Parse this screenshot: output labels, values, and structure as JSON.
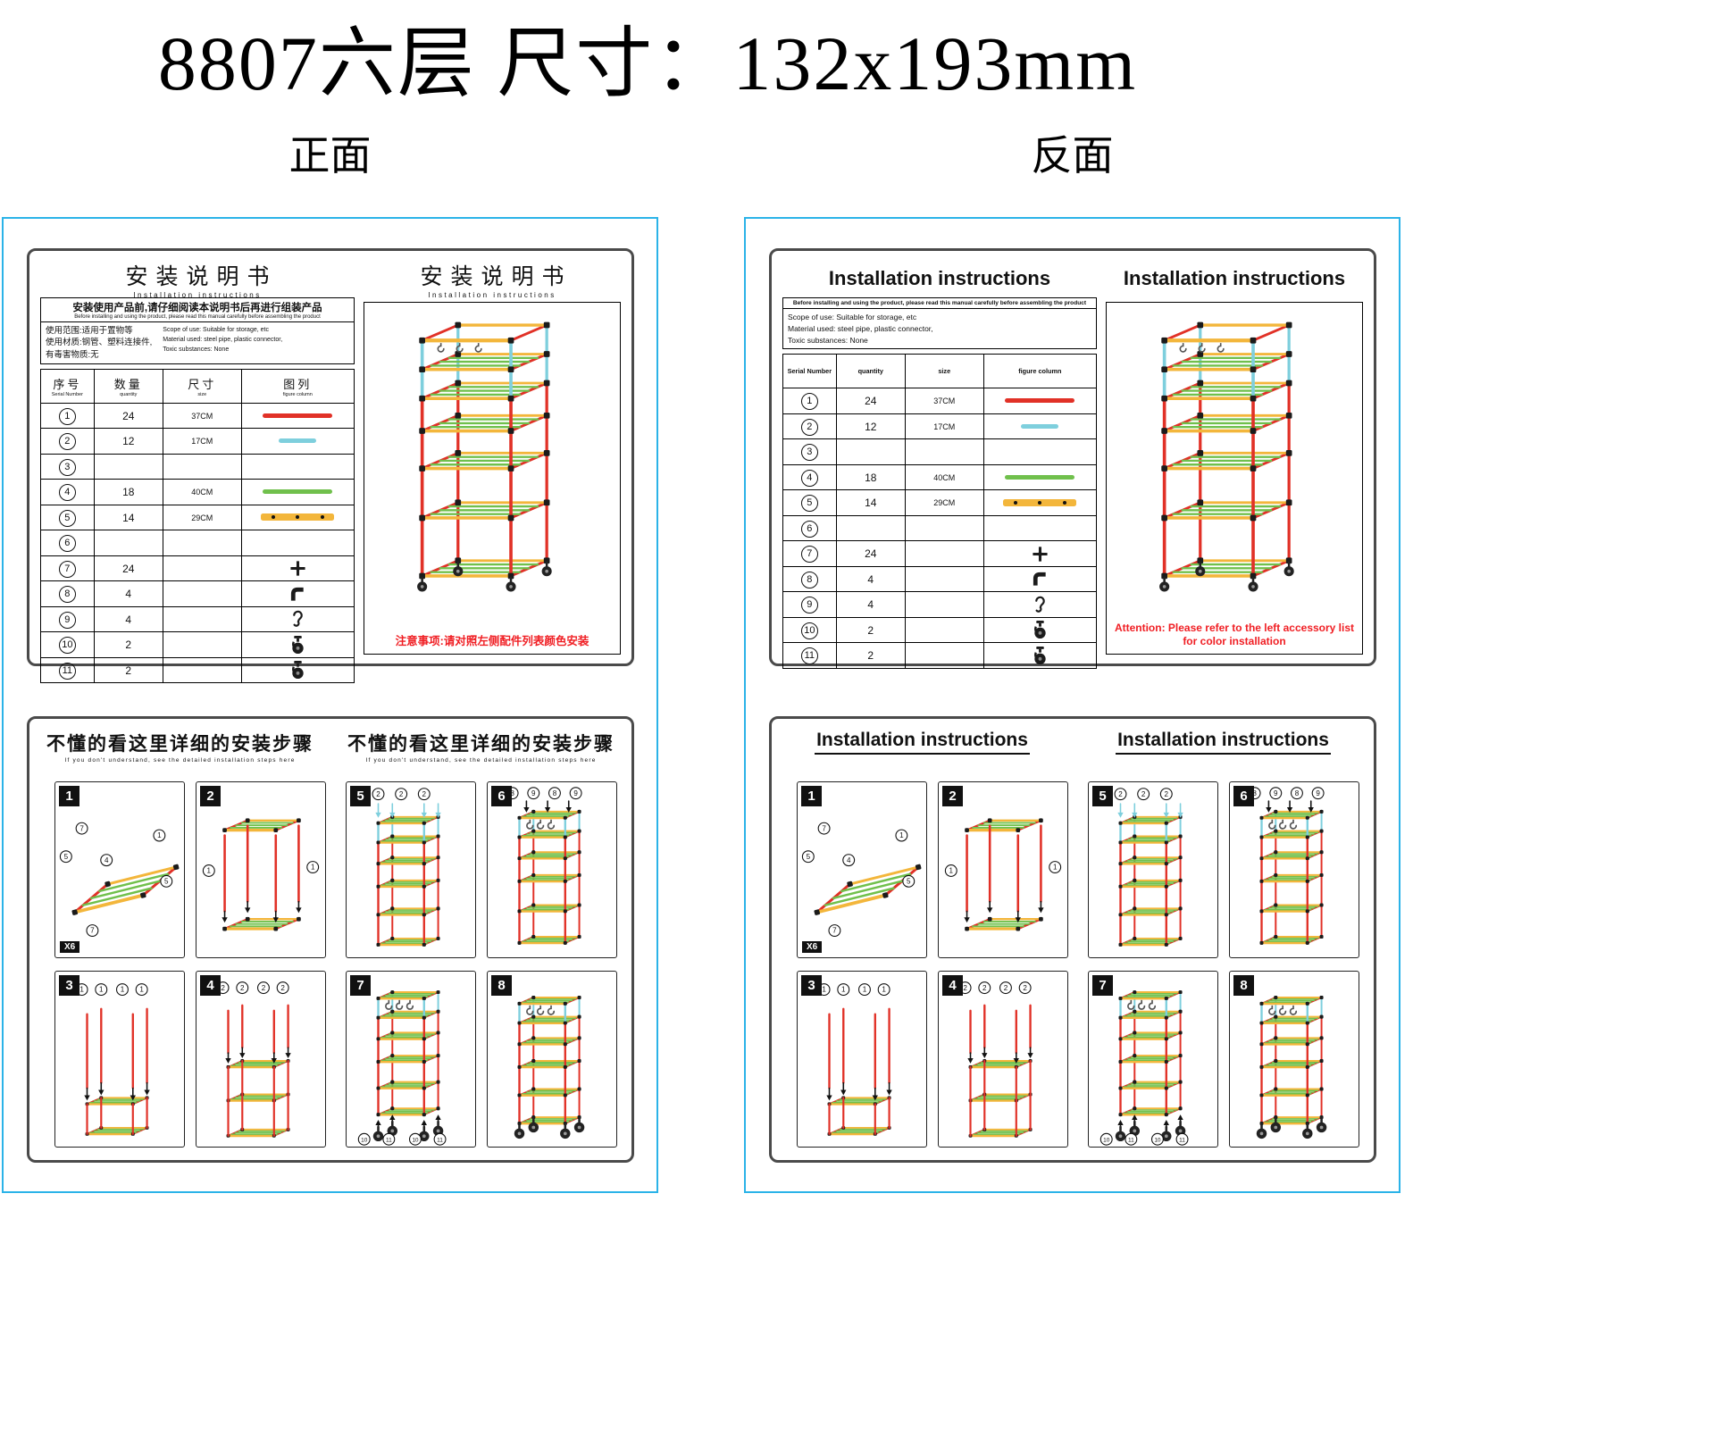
{
  "page": {
    "title": "8807六层 尺寸：132x193mm",
    "front_label": "正面",
    "back_label": "反面"
  },
  "colors": {
    "red": "#e13127",
    "cyan": "#7ecfdd",
    "green": "#70c04c",
    "yellow": "#f3b63b",
    "black": "#1b1b1b",
    "attention_red": "#f01e23",
    "frame_blue": "#2bb3e8",
    "panel_border": "#4a4a4a"
  },
  "parts_table": {
    "headers": [
      {
        "cn": "序号",
        "en": "Serial Number"
      },
      {
        "cn": "数量",
        "en": "quantity"
      },
      {
        "cn": "尺寸",
        "en": "size"
      },
      {
        "cn": "图列",
        "en": "figure column"
      }
    ],
    "rows": [
      {
        "no": "1",
        "qty": "24",
        "size": "37CM",
        "figure": "red-bar"
      },
      {
        "no": "2",
        "qty": "12",
        "size": "17CM",
        "figure": "cyan-bar"
      },
      {
        "no": "3",
        "qty": "",
        "size": "",
        "figure": "none"
      },
      {
        "no": "4",
        "qty": "18",
        "size": "40CM",
        "figure": "green-bar"
      },
      {
        "no": "5",
        "qty": "14",
        "size": "29CM",
        "figure": "yellow-bar-dots"
      },
      {
        "no": "6",
        "qty": "",
        "size": "",
        "figure": "none"
      },
      {
        "no": "7",
        "qty": "24",
        "size": "",
        "figure": "connector-icon"
      },
      {
        "no": "8",
        "qty": "4",
        "size": "",
        "figure": "elbow-icon"
      },
      {
        "no": "9",
        "qty": "4",
        "size": "",
        "figure": "hook-icon"
      },
      {
        "no": "10",
        "qty": "2",
        "size": "",
        "figure": "caster-icon"
      },
      {
        "no": "11",
        "qty": "2",
        "size": "",
        "figure": "caster-icon"
      }
    ]
  },
  "steps": [
    {
      "num": "1",
      "badge": "X6",
      "annotations": [
        "7",
        "5",
        "4",
        "1",
        "5",
        "7"
      ]
    },
    {
      "num": "2",
      "annotations": [
        "1",
        "1"
      ]
    },
    {
      "num": "3",
      "annotations": [
        "1",
        "1",
        "1",
        "1"
      ]
    },
    {
      "num": "4",
      "annotations": [
        "2",
        "2",
        "2",
        "2"
      ]
    },
    {
      "num": "5",
      "annotations": [
        "2",
        "2",
        "2"
      ]
    },
    {
      "num": "6",
      "annotations": [
        "8",
        "9",
        "8",
        "9"
      ]
    },
    {
      "num": "7",
      "annotations": [
        "10",
        "11",
        "10",
        "11"
      ]
    },
    {
      "num": "8",
      "annotations": []
    }
  ],
  "front": {
    "manual_title": "安装说明书",
    "manual_subtitle": "Installation instructions",
    "notice_bold": "安装使用产品前,请仔细阅读本说明书后再进行组装产品",
    "notice_small": "Before installing and using the product, please read this manual carefully before assembling the product",
    "scope_cn": [
      "使用范围:适用于置物等",
      "使用材质:钢管、塑料连接件,",
      "有毒害物质:无"
    ],
    "scope_en": [
      "Scope of use: Suitable for storage, etc",
      "Material used: steel pipe, plastic connector,",
      "Toxic substances: None"
    ],
    "attention": "注意事项:请对照左侧配件列表颜色安装",
    "steps_title": "不懂的看这里详细的安装步骤",
    "steps_subtitle": "If you don't understand, see the detailed installation steps here"
  },
  "back": {
    "manual_title": "Installation instructions",
    "notice_bold": "Before installing and using the product, please read this manual carefully before assembling the product",
    "scope_en": [
      "Scope of use: Suitable for storage, etc",
      "Material used: steel pipe, plastic connector,",
      "Toxic substances: None"
    ],
    "attention": "Attention: Please refer to the left accessory list for color installation",
    "steps_title": "Installation instructions"
  }
}
